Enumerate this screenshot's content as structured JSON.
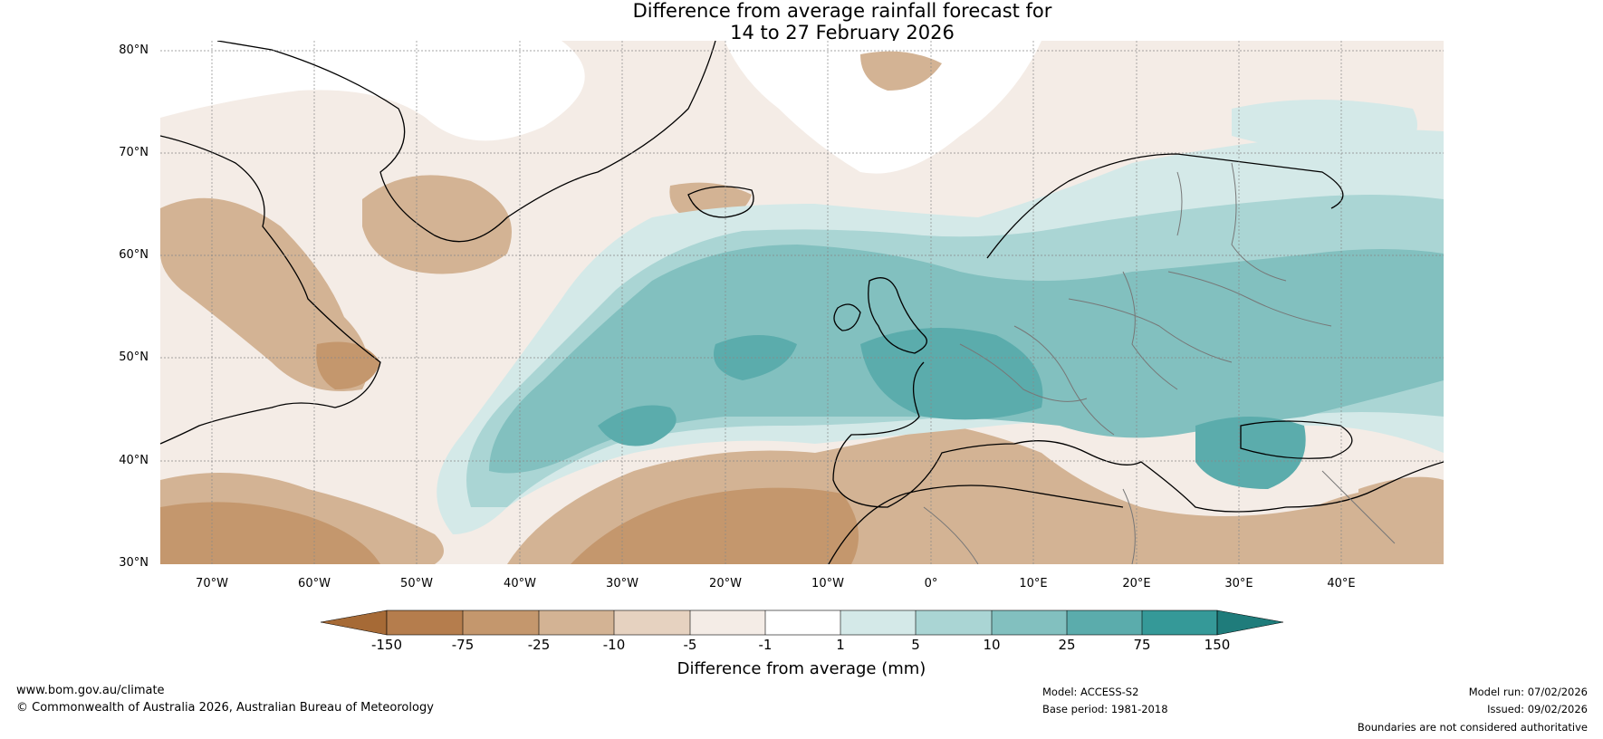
{
  "title": {
    "line1": "Difference from average rainfall forecast for",
    "line2": "14 to 27 February 2026"
  },
  "map": {
    "latitude_labels": [
      "80°N",
      "70°N",
      "60°N",
      "50°N",
      "40°N",
      "30°N"
    ],
    "longitude_labels": [
      "70°W",
      "60°W",
      "50°W",
      "40°W",
      "30°W",
      "20°W",
      "10°W",
      "0°",
      "10°E",
      "20°E",
      "30°E",
      "40°E"
    ],
    "anomaly_areas": [
      {
        "name": "north-atlantic-europe-wet-band",
        "category": "10 to 25"
      },
      {
        "name": "central-atlantic-wet-core",
        "category": "25 to 75"
      },
      {
        "name": "western-europe-wet-core",
        "category": "25 to 75"
      },
      {
        "name": "greenland-dry-area",
        "category": "-25 to -10"
      },
      {
        "name": "north-africa-dry-area",
        "category": "-25 to -10"
      },
      {
        "name": "labrador-dry-area",
        "category": "-25 to -10"
      }
    ]
  },
  "colorbar": {
    "title": "Difference from average (mm)",
    "ticks": [
      "-150",
      "-75",
      "-25",
      "-10",
      "-5",
      "-1",
      "1",
      "5",
      "10",
      "25",
      "75",
      "150"
    ],
    "colors": [
      "#a66a36",
      "#b57d4d",
      "#c4976d",
      "#d3b394",
      "#e6d2c0",
      "#f4ece6",
      "#ffffff",
      "#d4e9e8",
      "#aad5d4",
      "#82c0bf",
      "#5bacac",
      "#359998",
      "#1f7c7b"
    ]
  },
  "footer": {
    "website": "www.bom.gov.au/climate",
    "copyright": "© Commonwealth of Australia 2026, Australian Bureau of Meteorology",
    "model": "Model: ACCESS-S2",
    "base_period": "Base period: 1981-2018",
    "model_run": "Model run: 07/02/2026",
    "issued": "Issued: 09/02/2026",
    "disclaimer": "Boundaries are not considered authoritative"
  }
}
